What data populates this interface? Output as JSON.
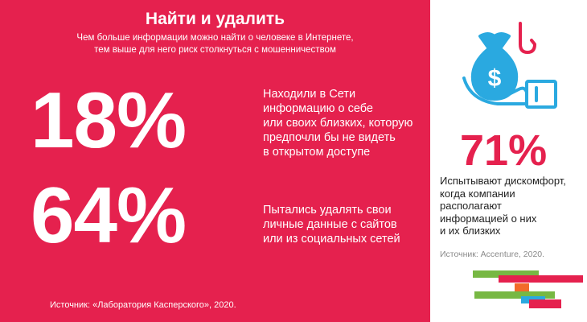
{
  "header": {
    "title": "Найти и удалить",
    "subtitle_line1": "Чем больше информации можно найти о человеке в Интернете,",
    "subtitle_line2": "тем выше для него риск столкнуться с мошенничеством"
  },
  "stats": [
    {
      "value": "18%",
      "lines": [
        "Находили в Сети",
        "информацию о себе",
        "или своих близких, которую",
        "предпочли бы не видеть",
        "в открытом доступе"
      ]
    },
    {
      "value": "64%",
      "lines": [
        "Пытались удалять свои",
        "личные данные с сайтов",
        "или из социальных сетей"
      ]
    }
  ],
  "source_left": "Источник: «Лаборатория Касперского», 2020.",
  "right_panel": {
    "value": "71%",
    "lines": [
      "Испытывают дискомфорт,",
      "когда компании",
      "располагают",
      "информацией о них",
      "и их близких"
    ],
    "source": "Источник: Accenture, 2020."
  },
  "icon": {
    "name": "money-bag-hand-hook-icon",
    "primary_color": "#2aa9e0",
    "accent_color": "#e5214e"
  },
  "colors": {
    "brand_red": "#e5214e",
    "green": "#77b843",
    "orange": "#f26b2a",
    "blue": "#2aa9e0",
    "pink": "#e5214e"
  }
}
